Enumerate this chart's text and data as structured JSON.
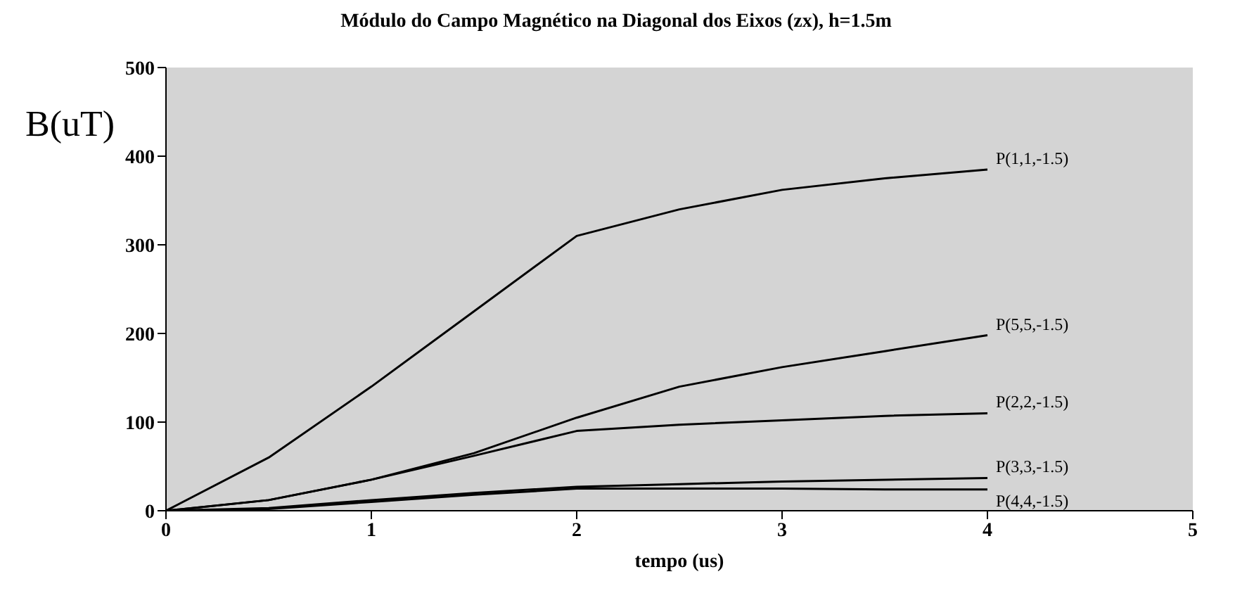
{
  "chart_data": {
    "type": "line",
    "title": "Módulo do Campo Magnético na Diagonal dos Eixos (zx), h=1.5m",
    "xlabel": "tempo (us)",
    "ylabel": "B(uT)",
    "xlim": [
      0,
      5
    ],
    "xticks": [
      0,
      1,
      2,
      3,
      4,
      5
    ],
    "ylim": [
      0,
      500
    ],
    "yticks": [
      0,
      100,
      200,
      300,
      400,
      500
    ],
    "grid": false,
    "legend": false,
    "marker": "none",
    "line_style": "solid",
    "x": [
      0,
      0.5,
      1,
      1.5,
      2,
      2.5,
      3,
      3.5,
      4
    ],
    "series": [
      {
        "name": "P(1,1,-1.5)",
        "color": "#000000",
        "values": [
          0,
          60,
          140,
          225,
          310,
          340,
          362,
          375,
          385
        ]
      },
      {
        "name": "P(5,5,-1.5)",
        "color": "#000000",
        "values": [
          0,
          12,
          35,
          65,
          105,
          140,
          162,
          180,
          198
        ]
      },
      {
        "name": "P(2,2,-1.5)",
        "color": "#000000",
        "values": [
          0,
          12,
          35,
          62,
          90,
          97,
          102,
          107,
          110
        ]
      },
      {
        "name": "P(3,3,-1.5)",
        "color": "#000000",
        "values": [
          0,
          3,
          12,
          20,
          27,
          30,
          33,
          35,
          37
        ]
      },
      {
        "name": "P(4,4,-1.5)",
        "color": "#000000",
        "values": [
          0,
          2,
          10,
          18,
          25,
          25,
          25,
          24,
          24
        ]
      }
    ]
  }
}
